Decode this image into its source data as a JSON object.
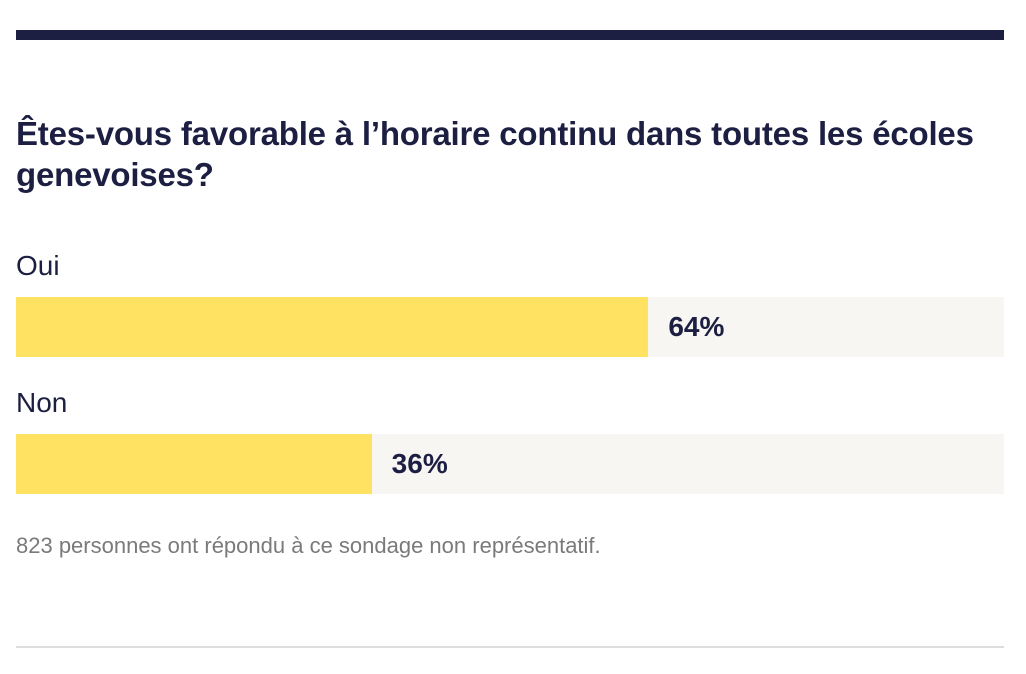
{
  "poll": {
    "question": "Êtes-vous favorable à l’horaire continu dans toutes les écoles genevoises?",
    "options": [
      {
        "label": "Oui",
        "percent_text": "64%",
        "value": 64
      },
      {
        "label": "Non",
        "percent_text": "36%",
        "value": 36
      }
    ],
    "footnote": "823 personnes ont répondu à ce sondage non représentatif."
  },
  "colors": {
    "rule": "#1d1f42",
    "text": "#1d1f42",
    "bar_fill": "#ffe262",
    "bar_track": "#f7f6f2",
    "footnote": "#7a7a7a",
    "bottom_rule": "#dddddd"
  }
}
